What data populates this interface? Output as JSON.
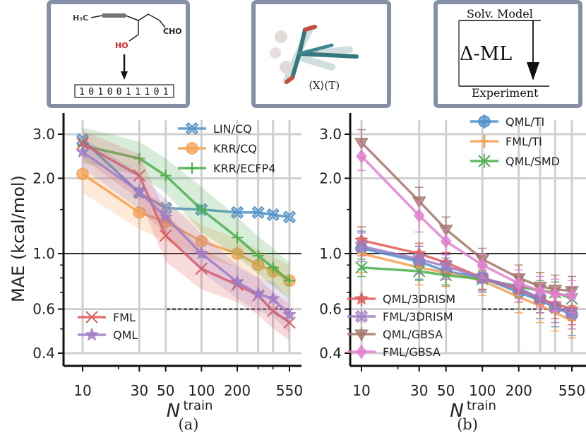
{
  "insets": {
    "molecule": {
      "ch3_label": "H₃C",
      "oh_label": "HO",
      "cho_label": "CHO",
      "fingerprint": [
        "1",
        "0",
        "1",
        "0",
        "0",
        "1",
        "1",
        "1",
        "0",
        "1"
      ]
    },
    "conformer": {
      "label": "⟨X⟩(T)"
    },
    "delta_ml": {
      "top_label": "Solv. Model",
      "center_label": "Δ-ML",
      "bottom_label": "Experiment"
    }
  },
  "shared": {
    "ylabel": "MAE (kcal/mol)",
    "xlabel_main": "N",
    "xlabel_sup": "train",
    "reference_line": 1.0,
    "dashed_line": 0.6,
    "xticks": [
      10,
      30,
      50,
      100,
      200,
      550
    ],
    "xtick_labels": [
      "10",
      "30",
      "50",
      "100",
      "200",
      "550"
    ],
    "yticks": [
      0.4,
      0.6,
      1.0,
      2.0,
      3.0
    ],
    "ytick_labels": [
      "0.4",
      "0.6",
      "1.0",
      "2.0",
      "3.0"
    ],
    "log_x": true,
    "log_y": true
  },
  "panels": [
    {
      "label": "(a)",
      "legend_top": [
        "LIN/CQ",
        "KRR/CQ",
        "KRR/ECFP4"
      ],
      "legend_bottom": [
        "FML",
        "QML"
      ]
    },
    {
      "label": "(b)",
      "legend_top": [
        "QML/TI",
        "FML/TI",
        "QML/SMD"
      ],
      "legend_bottom": [
        "QML/3DRISM",
        "FML/3DRISM",
        "QML/GBSA",
        "FML/GBSA"
      ]
    }
  ],
  "chart_data": [
    {
      "type": "line",
      "panel": "(a)",
      "xlabel": "N^train",
      "ylabel": "MAE (kcal/mol)",
      "xscale": "log",
      "yscale": "log",
      "ylim": [
        0.4,
        3.3
      ],
      "grid": true,
      "legend_placement": "top-right",
      "series": [
        {
          "name": "LIN/CQ",
          "color": "#4f8fc8",
          "marker": "X",
          "band": false,
          "x": [
            10,
            30,
            50,
            100,
            200,
            300,
            400,
            550
          ],
          "y": [
            2.85,
            1.75,
            1.52,
            1.5,
            1.46,
            1.46,
            1.43,
            1.4
          ]
        },
        {
          "name": "KRR/CQ",
          "color": "#f6a04d",
          "marker": "o",
          "band": true,
          "x": [
            10,
            30,
            50,
            100,
            200,
            300,
            400,
            550
          ],
          "y": [
            2.08,
            1.46,
            1.34,
            1.12,
            1.0,
            0.9,
            0.85,
            0.78
          ],
          "y_lo": [
            1.75,
            1.25,
            1.12,
            0.98,
            0.88,
            0.8,
            0.75,
            0.68
          ],
          "y_hi": [
            2.5,
            1.75,
            1.6,
            1.3,
            1.15,
            1.04,
            0.97,
            0.9
          ]
        },
        {
          "name": "KRR/ECFP4",
          "color": "#4caf50",
          "marker": "+",
          "band": true,
          "x": [
            10,
            30,
            50,
            100,
            200,
            300,
            400,
            550
          ],
          "y": [
            2.7,
            2.4,
            2.05,
            1.5,
            1.16,
            0.98,
            0.88,
            0.78
          ],
          "y_lo": [
            2.3,
            2.05,
            1.75,
            1.22,
            0.97,
            0.83,
            0.74,
            0.66
          ],
          "y_hi": [
            3.2,
            2.8,
            2.4,
            1.85,
            1.4,
            1.17,
            1.05,
            0.92
          ]
        },
        {
          "name": "FML",
          "color": "#e05a5a",
          "marker": "x",
          "band": true,
          "x": [
            10,
            30,
            50,
            100,
            200,
            300,
            400,
            550
          ],
          "y": [
            2.75,
            2.05,
            1.18,
            0.87,
            0.75,
            0.68,
            0.59,
            0.53
          ],
          "y_lo": [
            2.4,
            1.65,
            0.93,
            0.72,
            0.64,
            0.57,
            0.5,
            0.45
          ],
          "y_hi": [
            3.1,
            2.5,
            1.45,
            1.05,
            0.88,
            0.8,
            0.7,
            0.63
          ]
        },
        {
          "name": "QML",
          "color": "#9e7cc6",
          "marker": "*",
          "band": true,
          "x": [
            10,
            30,
            50,
            100,
            200,
            300,
            400,
            550
          ],
          "y": [
            2.55,
            1.77,
            1.4,
            1.0,
            0.77,
            0.69,
            0.66,
            0.57
          ],
          "y_lo": [
            2.2,
            1.5,
            1.2,
            0.85,
            0.66,
            0.59,
            0.56,
            0.48
          ],
          "y_hi": [
            2.9,
            2.1,
            1.65,
            1.2,
            0.9,
            0.8,
            0.77,
            0.67
          ]
        }
      ]
    },
    {
      "type": "line",
      "panel": "(b)",
      "xlabel": "N^train",
      "ylabel": "MAE (kcal/mol)",
      "xscale": "log",
      "yscale": "log",
      "ylim": [
        0.4,
        3.3
      ],
      "grid": true,
      "legend_placement": "top-right",
      "series": [
        {
          "name": "QML/TI",
          "color": "#4f8fc8",
          "marker": "o",
          "x": [
            10,
            30,
            50,
            100,
            200,
            300,
            400,
            550
          ],
          "y": [
            1.05,
            0.93,
            0.85,
            0.8,
            0.7,
            0.65,
            0.61,
            0.57
          ],
          "err": [
            0.18,
            0.14,
            0.11,
            0.1,
            0.1,
            0.1,
            0.1,
            0.1
          ]
        },
        {
          "name": "FML/TI",
          "color": "#f6a04d",
          "marker": "|",
          "x": [
            10,
            30,
            50,
            100,
            200,
            300,
            400,
            550
          ],
          "y": [
            1.0,
            0.88,
            0.84,
            0.78,
            0.67,
            0.62,
            0.58,
            0.54
          ],
          "err": [
            0.16,
            0.13,
            0.1,
            0.1,
            0.09,
            0.09,
            0.09,
            0.08
          ]
        },
        {
          "name": "QML/SMD",
          "color": "#4caf50",
          "marker": "x",
          "x": [
            10,
            30,
            50,
            100,
            200,
            300,
            400,
            550
          ],
          "y": [
            0.88,
            0.85,
            0.82,
            0.79,
            0.74,
            0.71,
            0.7,
            0.66
          ],
          "err": [
            0.07,
            0.07,
            0.07,
            0.07,
            0.07,
            0.07,
            0.07,
            0.07
          ]
        },
        {
          "name": "QML/3DRISM",
          "color": "#e05a5a",
          "marker": "*",
          "x": [
            10,
            30,
            50,
            100,
            200,
            300,
            400,
            550
          ],
          "y": [
            1.13,
            1.0,
            0.92,
            0.8,
            0.72,
            0.66,
            0.63,
            0.6
          ],
          "err": [
            0.15,
            0.1,
            0.09,
            0.08,
            0.08,
            0.08,
            0.08,
            0.08
          ]
        },
        {
          "name": "FML/3DRISM",
          "color": "#9e7cc6",
          "marker": "X",
          "x": [
            10,
            30,
            50,
            100,
            200,
            300,
            400,
            550
          ],
          "y": [
            1.07,
            0.95,
            0.89,
            0.8,
            0.73,
            0.66,
            0.61,
            0.58
          ],
          "err": [
            0.14,
            0.12,
            0.1,
            0.09,
            0.09,
            0.08,
            0.08,
            0.08
          ]
        },
        {
          "name": "QML/GBSA",
          "color": "#a5776b",
          "marker": "v",
          "x": [
            10,
            30,
            50,
            100,
            200,
            300,
            400,
            550
          ],
          "y": [
            2.78,
            1.62,
            1.25,
            0.95,
            0.8,
            0.74,
            0.72,
            0.71
          ],
          "err": [
            0.35,
            0.22,
            0.15,
            0.1,
            0.1,
            0.1,
            0.1,
            0.1
          ]
        },
        {
          "name": "FML/GBSA",
          "color": "#e27fd0",
          "marker": "D",
          "x": [
            10,
            30,
            50,
            100,
            200,
            300,
            400,
            550
          ],
          "y": [
            2.45,
            1.42,
            1.12,
            0.9,
            0.76,
            0.71,
            0.69,
            0.68
          ],
          "err": [
            0.3,
            0.2,
            0.13,
            0.1,
            0.1,
            0.1,
            0.1,
            0.1
          ]
        }
      ]
    }
  ]
}
